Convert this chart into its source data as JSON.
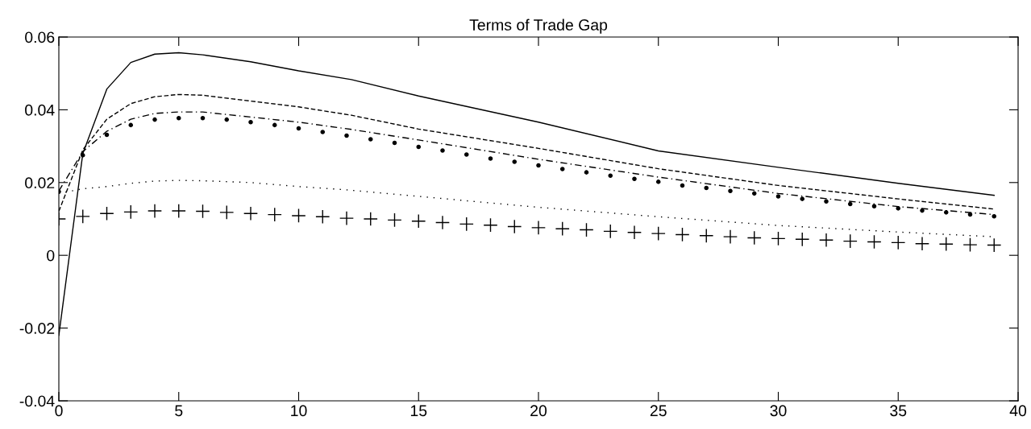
{
  "chart_data": {
    "type": "line",
    "title": "Terms of Trade Gap",
    "xlim": [
      0,
      40
    ],
    "xticks": [
      0,
      5,
      10,
      15,
      20,
      25,
      30,
      35,
      40
    ],
    "ylim": [
      -0.04,
      0.06
    ],
    "yticks": [
      -0.04,
      -0.02,
      0,
      0.02,
      0.04,
      0.06
    ],
    "grid": false,
    "legend": false,
    "series": [
      {
        "line_style": "solid",
        "marker": "none",
        "color": "#000000",
        "x": [
          0,
          1,
          2,
          3,
          4,
          5,
          6,
          8,
          10,
          12.2,
          15,
          20,
          25,
          30,
          35,
          39
        ],
        "values": [
          -0.022,
          0.028,
          0.0457,
          0.053,
          0.0553,
          0.0557,
          0.0551,
          0.0532,
          0.0507,
          0.0483,
          0.0438,
          0.0366,
          0.0287,
          0.0242,
          0.0198,
          0.0165
        ]
      },
      {
        "line_style": "dashed",
        "marker": "none",
        "color": "#000000",
        "x": [
          0,
          1,
          2,
          3,
          4,
          5,
          6,
          10,
          12.2,
          15,
          20,
          25,
          26.3,
          30,
          35,
          39
        ],
        "values": [
          0.0121,
          0.029,
          0.0374,
          0.0417,
          0.0436,
          0.0442,
          0.044,
          0.0408,
          0.0385,
          0.0347,
          0.0294,
          0.0238,
          0.0226,
          0.0192,
          0.0155,
          0.0127
        ]
      },
      {
        "line_style": "dashdot",
        "marker": "none",
        "color": "#000000",
        "x": [
          0,
          1,
          2,
          3,
          4,
          5,
          6,
          10,
          12.2,
          15,
          20,
          25,
          30,
          35,
          39
        ],
        "values": [
          0.0177,
          0.0285,
          0.0341,
          0.0374,
          0.039,
          0.0394,
          0.0394,
          0.0366,
          0.0346,
          0.0317,
          0.0264,
          0.0215,
          0.017,
          0.0134,
          0.0112
        ]
      },
      {
        "type": "scatter",
        "marker": "circle",
        "color": "#000000",
        "x": [
          0,
          1,
          2,
          3,
          4,
          5,
          6,
          7,
          8,
          9,
          10,
          11,
          12,
          13,
          14,
          15,
          16,
          17,
          18,
          19,
          20,
          21,
          22,
          23,
          24,
          25,
          26,
          27,
          28,
          29,
          30,
          31,
          32,
          33,
          34,
          35,
          36,
          37,
          38,
          39
        ],
        "values": [
          0.0175,
          0.0275,
          0.0331,
          0.0358,
          0.0373,
          0.0377,
          0.0377,
          0.0373,
          0.0366,
          0.0358,
          0.0349,
          0.0339,
          0.0329,
          0.0319,
          0.0309,
          0.0298,
          0.0288,
          0.0277,
          0.0266,
          0.0257,
          0.0247,
          0.0237,
          0.0228,
          0.0219,
          0.021,
          0.0202,
          0.0192,
          0.0185,
          0.0177,
          0.017,
          0.0162,
          0.0155,
          0.0148,
          0.0141,
          0.0135,
          0.0129,
          0.0123,
          0.0118,
          0.0112,
          0.0107
        ]
      },
      {
        "line_style": "dotted",
        "marker": "none",
        "color": "#000000",
        "x": [
          0,
          1,
          2,
          3,
          4,
          5,
          6,
          8,
          10,
          12,
          15,
          20,
          25,
          30,
          35,
          39
        ],
        "values": [
          0.017,
          0.0183,
          0.0189,
          0.0198,
          0.0204,
          0.0206,
          0.0205,
          0.02,
          0.0189,
          0.018,
          0.0162,
          0.0132,
          0.0106,
          0.0082,
          0.0064,
          0.0051
        ]
      },
      {
        "type": "scatter",
        "marker": "cross",
        "color": "#000000",
        "x": [
          0,
          1,
          2,
          3,
          4,
          5,
          6,
          7,
          8,
          9,
          10,
          11,
          12,
          13,
          14,
          15,
          16,
          17,
          18,
          19,
          20,
          21,
          22,
          23,
          24,
          25,
          26,
          27,
          28,
          29,
          30,
          31,
          32,
          33,
          34,
          35,
          36,
          37,
          38,
          39
        ],
        "values": [
          0.01,
          0.0107,
          0.0115,
          0.0119,
          0.0122,
          0.0122,
          0.0121,
          0.0118,
          0.0115,
          0.0112,
          0.0109,
          0.0106,
          0.0102,
          0.01,
          0.0097,
          0.0094,
          0.009,
          0.0086,
          0.0083,
          0.0079,
          0.0076,
          0.0073,
          0.007,
          0.0066,
          0.0063,
          0.006,
          0.0057,
          0.0054,
          0.0051,
          0.0048,
          0.0046,
          0.0044,
          0.0042,
          0.0039,
          0.0037,
          0.0035,
          0.0032,
          0.0031,
          0.0029,
          0.0028
        ]
      }
    ]
  }
}
